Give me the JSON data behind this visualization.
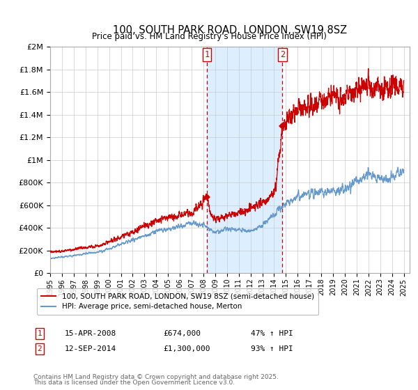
{
  "title": "100, SOUTH PARK ROAD, LONDON, SW19 8SZ",
  "subtitle": "Price paid vs. HM Land Registry's House Price Index (HPI)",
  "legend_line1": "100, SOUTH PARK ROAD, LONDON, SW19 8SZ (semi-detached house)",
  "legend_line2": "HPI: Average price, semi-detached house, Merton",
  "footnote1": "Contains HM Land Registry data © Crown copyright and database right 2025.",
  "footnote2": "This data is licensed under the Open Government Licence v3.0.",
  "sale1_label": "1",
  "sale1_date": "15-APR-2008",
  "sale1_price": "£674,000",
  "sale1_hpi": "47% ↑ HPI",
  "sale2_label": "2",
  "sale2_date": "12-SEP-2014",
  "sale2_price": "£1,300,000",
  "sale2_hpi": "93% ↑ HPI",
  "red_color": "#cc0000",
  "blue_color": "#6699cc",
  "shade_color": "#ddeeff",
  "grid_color": "#cccccc",
  "ylim": [
    0,
    2000000
  ],
  "yticks": [
    0,
    200000,
    400000,
    600000,
    800000,
    1000000,
    1200000,
    1400000,
    1600000,
    1800000,
    2000000
  ],
  "ytick_labels": [
    "£0",
    "£200K",
    "£400K",
    "£600K",
    "£800K",
    "£1M",
    "£1.2M",
    "£1.4M",
    "£1.6M",
    "£1.8M",
    "£2M"
  ],
  "sale1_year": 2008.29,
  "sale1_value": 674000,
  "sale2_year": 2014.71,
  "sale2_value": 1300000,
  "xlim_start": 1995,
  "xlim_end": 2025.5
}
